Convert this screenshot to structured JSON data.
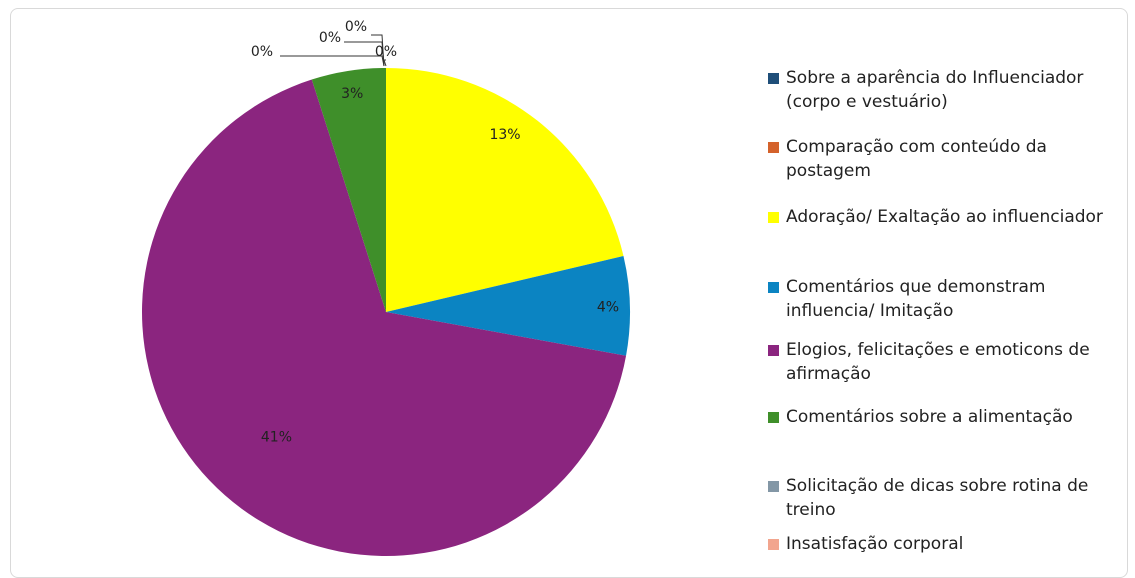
{
  "chart_data": {
    "type": "pie",
    "legend_position": "right",
    "slices": [
      {
        "label": "Sobre a aparência do Influenciador (corpo e vestuário)",
        "value": 0,
        "display": "0%",
        "color": "#1f4e79"
      },
      {
        "label": "Comparação com conteúdo da postagem",
        "value": 0,
        "display": "0%",
        "color": "#d4622b"
      },
      {
        "label": "Adoração/ Exaltação ao influenciador",
        "value": 13,
        "display": "13%",
        "color": "#ffff00"
      },
      {
        "label": "Comentários que demonstram influencia/ Imitação",
        "value": 4,
        "display": "4%",
        "color": "#0b84c2"
      },
      {
        "label": "Elogios, felicitações e emoticons de afirmação",
        "value": 41,
        "display": "41%",
        "color": "#8b257f"
      },
      {
        "label": "Comentários sobre a alimentação",
        "value": 3,
        "display": "3%",
        "color": "#3f8f2a"
      },
      {
        "label": "Solicitação de dicas sobre rotina de treino",
        "value": 0,
        "display": "0%",
        "color": "#8397a6"
      },
      {
        "label": "Insatisfação corporal",
        "value": 0,
        "display": "0%",
        "color": "#f2a58e"
      }
    ]
  }
}
